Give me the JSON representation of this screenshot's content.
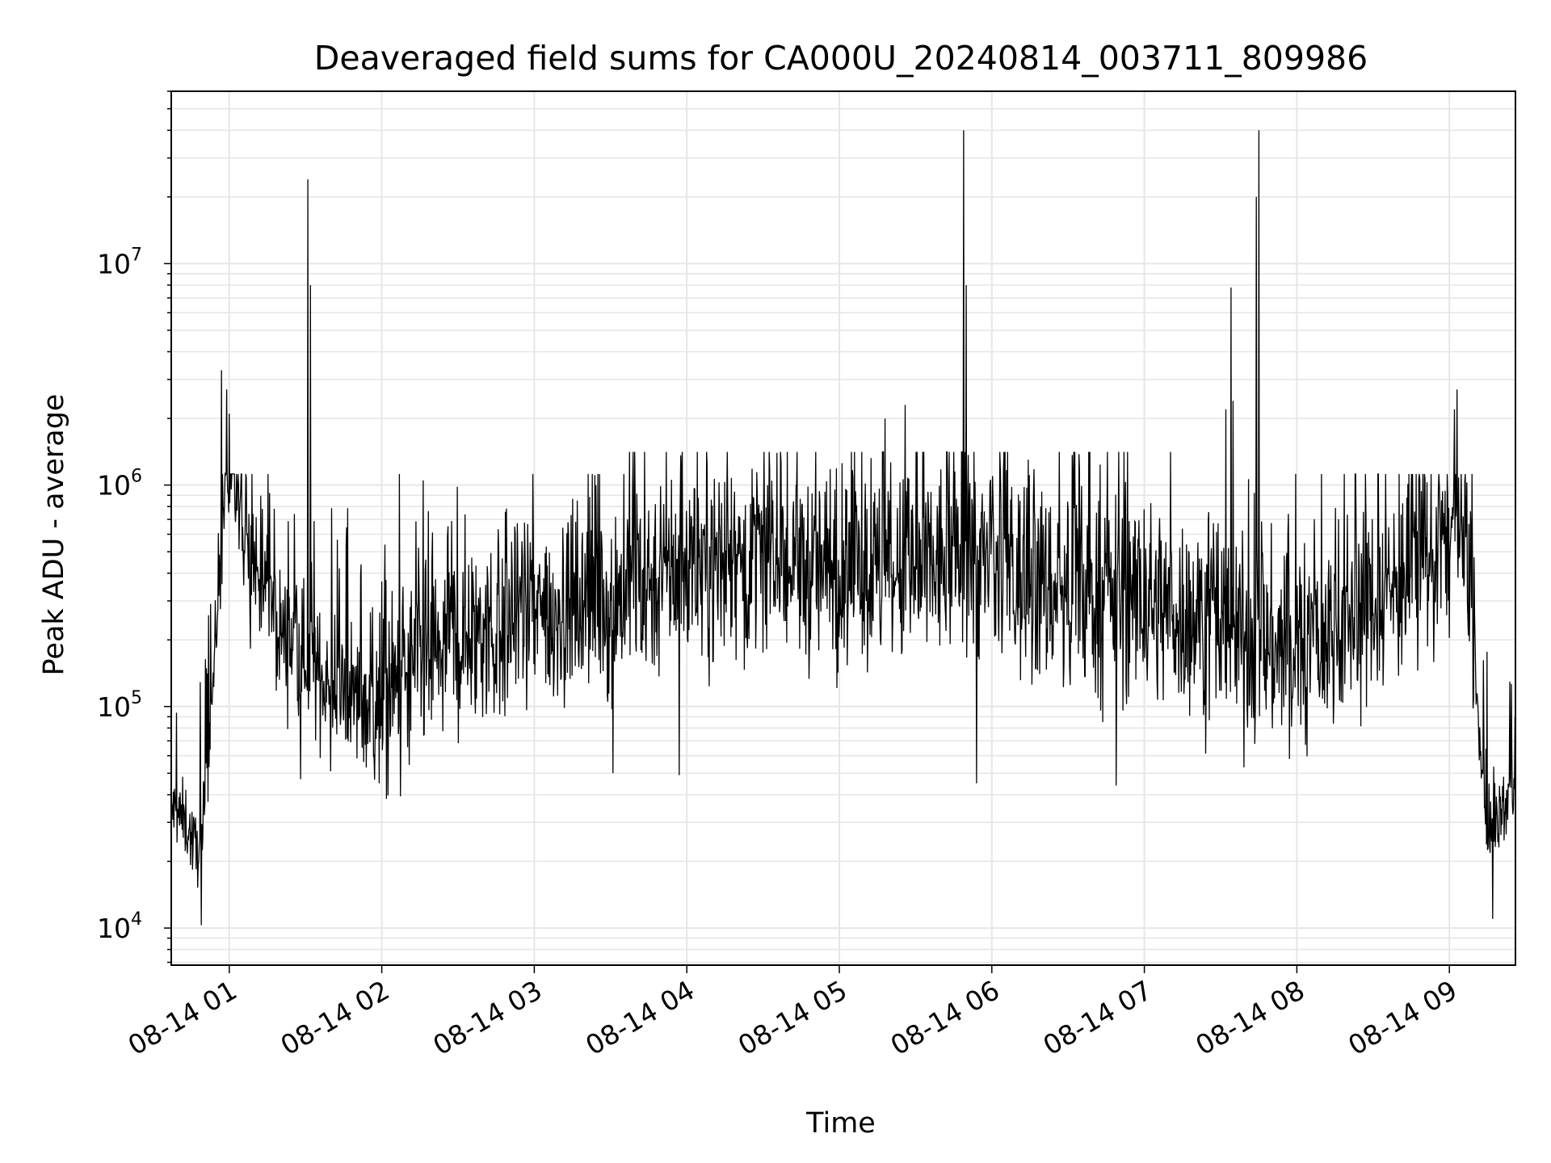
{
  "chart_data": {
    "type": "line",
    "title": "Deaveraged field sums for CA000U_20240814_003711_809986",
    "xlabel": "Time",
    "ylabel": "Peak ADU - average",
    "y_scale": "log",
    "grid": true,
    "line_color": "#000000",
    "grid_color": "#e6e6e6",
    "xlim": [
      "2024-08-14T00:37:11",
      "2024-08-14T09:26:00"
    ],
    "ylim": [
      6800,
      60000000
    ],
    "x_ticks": [
      {
        "t": "2024-08-14T01:00",
        "label": "08-14 01"
      },
      {
        "t": "2024-08-14T02:00",
        "label": "08-14 02"
      },
      {
        "t": "2024-08-14T03:00",
        "label": "08-14 03"
      },
      {
        "t": "2024-08-14T04:00",
        "label": "08-14 04"
      },
      {
        "t": "2024-08-14T05:00",
        "label": "08-14 05"
      },
      {
        "t": "2024-08-14T06:00",
        "label": "08-14 06"
      },
      {
        "t": "2024-08-14T07:00",
        "label": "08-14 07"
      },
      {
        "t": "2024-08-14T08:00",
        "label": "08-14 08"
      },
      {
        "t": "2024-08-14T09:00",
        "label": "08-14 09"
      }
    ],
    "y_ticks": [
      {
        "value": 10000,
        "base": "10",
        "exp": "4"
      },
      {
        "value": 100000,
        "base": "10",
        "exp": "5"
      },
      {
        "value": 1000000,
        "base": "10",
        "exp": "6"
      },
      {
        "value": 10000000,
        "base": "10",
        "exp": "7"
      }
    ],
    "series": [
      {
        "baseline": [
          [
            "2024-08-14T00:37",
            35000
          ],
          [
            "2024-08-14T00:43",
            30000
          ],
          [
            "2024-08-14T00:47",
            22000
          ],
          [
            "2024-08-14T00:50",
            30000
          ],
          [
            "2024-08-14T00:54",
            150000
          ],
          [
            "2024-08-14T00:58",
            1000000
          ],
          [
            "2024-08-14T01:01",
            1100000
          ],
          [
            "2024-08-14T01:05",
            650000
          ],
          [
            "2024-08-14T01:12",
            380000
          ],
          [
            "2024-08-14T01:20",
            220000
          ],
          [
            "2024-08-14T01:30",
            170000
          ],
          [
            "2024-08-14T01:40",
            115000
          ],
          [
            "2024-08-14T01:55",
            105000
          ],
          [
            "2024-08-14T02:05",
            110000
          ],
          [
            "2024-08-14T02:15",
            150000
          ],
          [
            "2024-08-14T02:30",
            200000
          ],
          [
            "2024-08-14T03:00",
            250000
          ],
          [
            "2024-08-14T03:30",
            300000
          ],
          [
            "2024-08-14T04:00",
            450000
          ],
          [
            "2024-08-14T04:30",
            450000
          ],
          [
            "2024-08-14T05:00",
            400000
          ],
          [
            "2024-08-14T05:30",
            380000
          ],
          [
            "2024-08-14T05:50",
            500000
          ],
          [
            "2024-08-14T06:00",
            400000
          ],
          [
            "2024-08-14T06:30",
            320000
          ],
          [
            "2024-08-14T07:00",
            300000
          ],
          [
            "2024-08-14T07:30",
            230000
          ],
          [
            "2024-08-14T08:00",
            170000
          ],
          [
            "2024-08-14T08:30",
            300000
          ],
          [
            "2024-08-14T08:55",
            500000
          ],
          [
            "2024-08-14T09:04",
            650000
          ],
          [
            "2024-08-14T09:09",
            320000
          ],
          [
            "2024-08-14T09:12",
            60000
          ],
          [
            "2024-08-14T09:15",
            25000
          ],
          [
            "2024-08-14T09:20",
            33000
          ],
          [
            "2024-08-14T09:26",
            45000
          ]
        ],
        "spikes": [
          [
            "2024-08-14T00:57",
            3300000
          ],
          [
            "2024-08-14T00:59",
            2700000
          ],
          [
            "2024-08-14T01:00",
            2100000
          ],
          [
            "2024-08-14T01:31",
            24000000
          ],
          [
            "2024-08-14T01:32",
            8000000
          ],
          [
            "2024-08-14T05:18",
            2000000
          ],
          [
            "2024-08-14T05:26",
            2300000
          ],
          [
            "2024-08-14T05:49",
            40000000
          ],
          [
            "2024-08-14T05:50",
            8000000
          ],
          [
            "2024-08-14T07:32",
            2200000
          ],
          [
            "2024-08-14T07:34",
            7800000
          ],
          [
            "2024-08-14T07:35",
            2400000
          ],
          [
            "2024-08-14T07:44",
            20000000
          ],
          [
            "2024-08-14T07:45",
            40000000
          ],
          [
            "2024-08-14T09:02",
            2200000
          ],
          [
            "2024-08-14T09:03",
            2700000
          ]
        ],
        "dips": [
          [
            "2024-08-14T00:49",
            10300
          ],
          [
            "2024-08-14T01:28",
            47000
          ],
          [
            "2024-08-14T01:59",
            45000
          ],
          [
            "2024-08-14T03:31",
            50000
          ],
          [
            "2024-08-14T03:57",
            49000
          ],
          [
            "2024-08-14T05:54",
            45000
          ],
          [
            "2024-08-14T06:49",
            44000
          ],
          [
            "2024-08-14T07:57",
            58000
          ],
          [
            "2024-08-14T09:17",
            11000
          ]
        ]
      }
    ]
  }
}
